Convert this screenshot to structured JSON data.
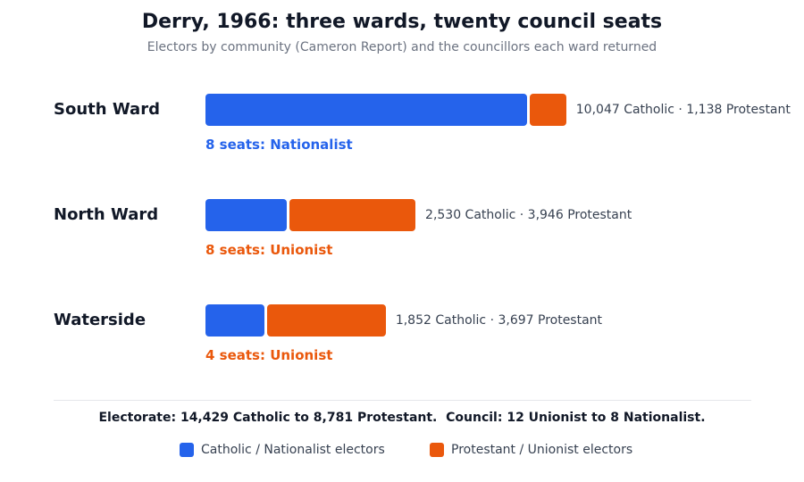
{
  "title": "Derry, 1966: three wards, twenty council seats",
  "subtitle": "Electors by community (Cameron Report) and the councillors each ward returned",
  "footer": "Electorate: 14,429 Catholic to 8,781 Protestant.  Council: 12 Unionist to 8 Nationalist.",
  "colors": {
    "catholic": "#2563eb",
    "protestant": "#ea580c"
  },
  "legend": [
    {
      "label": "Catholic / Nationalist electors",
      "series": "catholic"
    },
    {
      "label": "Protestant / Unionist electors",
      "series": "protestant"
    }
  ],
  "chart_data": {
    "type": "bar",
    "orientation": "horizontal",
    "stacked": true,
    "title": "Derry, 1966: three wards, twenty council seats",
    "subtitle": "Electors by community (Cameron Report) and the councillors each ward returned",
    "categories": [
      "South Ward",
      "North Ward",
      "Waterside"
    ],
    "series": [
      {
        "name": "Catholic / Nationalist electors",
        "key": "catholic",
        "values": [
          10047,
          2530,
          1852
        ]
      },
      {
        "name": "Protestant / Unionist electors",
        "key": "protestant",
        "values": [
          1138,
          3946,
          3697
        ]
      }
    ],
    "value_labels": [
      "10,047 Catholic  ·  1,138 Protestant",
      "2,530 Catholic  ·  3,946 Protestant",
      "1,852 Catholic  ·  3,697 Protestant"
    ],
    "seat_labels": [
      {
        "text": "8 seats: Nationalist",
        "party": "catholic"
      },
      {
        "text": "8 seats: Unionist",
        "party": "protestant"
      },
      {
        "text": "4 seats: Unionist",
        "party": "protestant"
      }
    ],
    "legend_position": "bottom",
    "grid": false
  }
}
